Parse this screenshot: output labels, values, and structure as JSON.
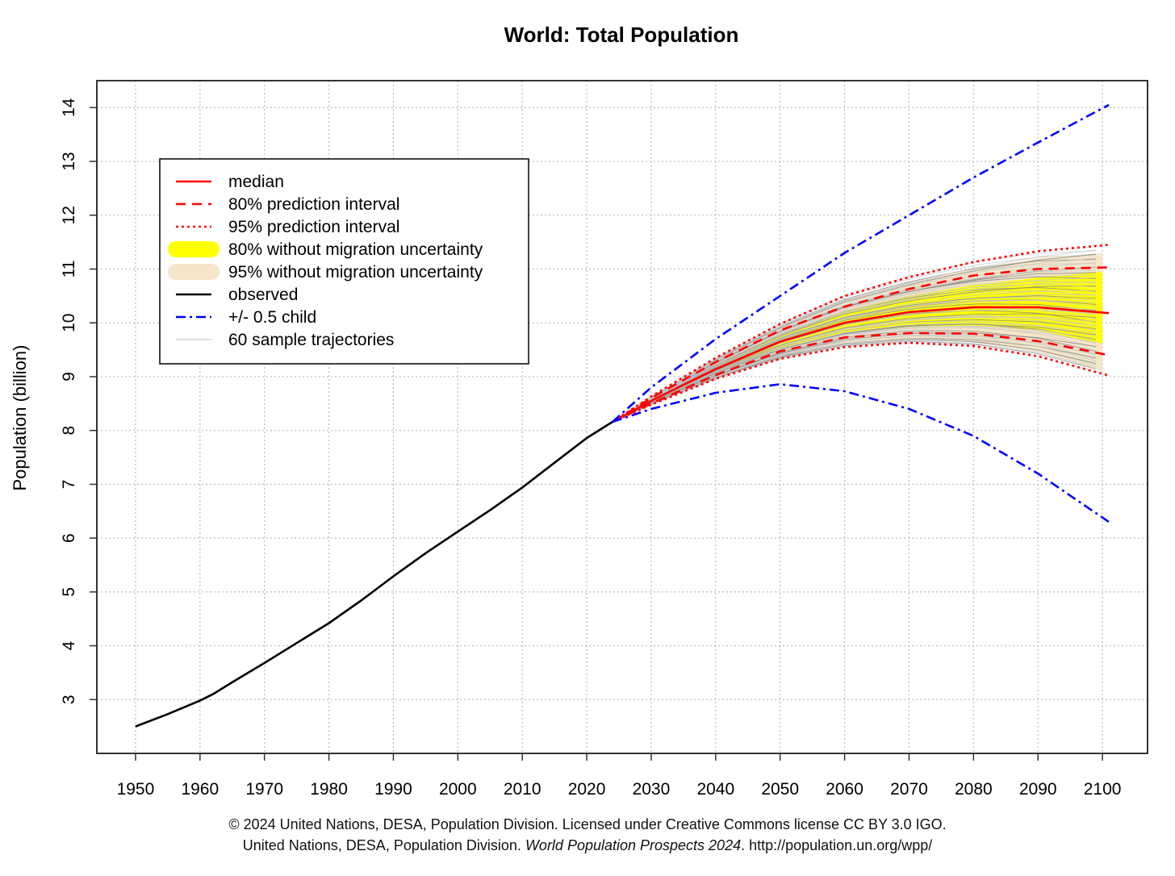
{
  "chart_data": {
    "type": "line",
    "title": "World: Total Population",
    "xlabel": "",
    "ylabel": "Population (billion)",
    "xlim": [
      1944,
      2107
    ],
    "ylim": [
      2.0,
      14.5
    ],
    "x_ticks": [
      "1950",
      "1960",
      "1970",
      "1980",
      "1990",
      "2000",
      "2010",
      "2020",
      "2030",
      "2040",
      "2050",
      "2060",
      "2070",
      "2080",
      "2090",
      "2100"
    ],
    "y_ticks": [
      "3",
      "4",
      "5",
      "6",
      "7",
      "8",
      "9",
      "10",
      "11",
      "12",
      "13",
      "14"
    ],
    "grid": true,
    "legend_position": "top-left",
    "legend": [
      {
        "label": "median",
        "style": "solid-red"
      },
      {
        "label": "80% prediction interval",
        "style": "dashed-red"
      },
      {
        "label": "95% prediction interval",
        "style": "dotted-red"
      },
      {
        "label": "80% without migration uncertainty",
        "style": "yellow-band"
      },
      {
        "label": "95% without migration uncertainty",
        "style": "beige-band"
      },
      {
        "label": "observed",
        "style": "solid-black"
      },
      {
        "label": "+/- 0.5 child",
        "style": "dashdot-blue"
      },
      {
        "label": "60 sample trajectories",
        "style": "thin-grey"
      }
    ],
    "colors": {
      "median": "#ff0000",
      "interval": "#ff0000",
      "band80": "#ffff00",
      "band95": "#f5e6c8",
      "observed": "#000000",
      "child": "#0000ff",
      "trajectories": "#bbbbbb",
      "grid": "#bbbbbb"
    },
    "series": [
      {
        "name": "observed",
        "x": [
          1950,
          1955,
          1960,
          1962,
          1965,
          1970,
          1975,
          1980,
          1985,
          1990,
          1995,
          2000,
          2005,
          2010,
          2015,
          2020,
          2024
        ],
        "values": [
          2.5,
          2.73,
          2.98,
          3.1,
          3.32,
          3.68,
          4.05,
          4.42,
          4.84,
          5.29,
          5.72,
          6.12,
          6.52,
          6.94,
          7.4,
          7.86,
          8.16
        ]
      },
      {
        "name": "median",
        "x": [
          2024,
          2030,
          2040,
          2050,
          2060,
          2070,
          2080,
          2090,
          2101
        ],
        "values": [
          8.16,
          8.55,
          9.14,
          9.65,
          10.0,
          10.2,
          10.29,
          10.29,
          10.18
        ]
      },
      {
        "name": "80% prediction interval upper",
        "x": [
          2024,
          2030,
          2040,
          2050,
          2060,
          2070,
          2080,
          2090,
          2101
        ],
        "values": [
          8.16,
          8.6,
          9.27,
          9.86,
          10.3,
          10.63,
          10.88,
          11.0,
          11.03
        ]
      },
      {
        "name": "80% prediction interval lower",
        "x": [
          2024,
          2030,
          2040,
          2050,
          2060,
          2070,
          2080,
          2090,
          2101
        ],
        "values": [
          8.16,
          8.5,
          9.03,
          9.47,
          9.73,
          9.81,
          9.8,
          9.66,
          9.4
        ]
      },
      {
        "name": "95% prediction interval upper",
        "x": [
          2024,
          2030,
          2040,
          2050,
          2060,
          2070,
          2080,
          2090,
          2101
        ],
        "values": [
          8.16,
          8.63,
          9.35,
          9.98,
          10.5,
          10.85,
          11.13,
          11.33,
          11.45
        ]
      },
      {
        "name": "95% prediction interval lower",
        "x": [
          2024,
          2030,
          2040,
          2050,
          2060,
          2070,
          2080,
          2090,
          2101
        ],
        "values": [
          8.16,
          8.48,
          8.96,
          9.33,
          9.55,
          9.63,
          9.57,
          9.38,
          9.02
        ]
      },
      {
        "name": "80% without migration uncertainty upper",
        "x": [
          2024,
          2030,
          2040,
          2050,
          2060,
          2070,
          2080,
          2090,
          2100
        ],
        "values": [
          8.16,
          8.58,
          9.23,
          9.8,
          10.22,
          10.5,
          10.7,
          10.84,
          10.95
        ]
      },
      {
        "name": "80% without migration uncertainty lower",
        "x": [
          2024,
          2030,
          2040,
          2050,
          2060,
          2070,
          2080,
          2090,
          2100
        ],
        "values": [
          8.16,
          8.52,
          9.07,
          9.52,
          9.82,
          9.92,
          9.95,
          9.85,
          9.62
        ]
      },
      {
        "name": "95% without migration uncertainty upper",
        "x": [
          2024,
          2030,
          2040,
          2050,
          2060,
          2070,
          2080,
          2090,
          2100
        ],
        "values": [
          8.16,
          8.62,
          9.32,
          9.93,
          10.42,
          10.75,
          11.0,
          11.2,
          11.3
        ]
      },
      {
        "name": "95% without migration uncertainty lower",
        "x": [
          2024,
          2030,
          2040,
          2050,
          2060,
          2070,
          2080,
          2090,
          2100
        ],
        "values": [
          8.16,
          8.49,
          8.99,
          9.38,
          9.6,
          9.69,
          9.64,
          9.46,
          9.1
        ]
      },
      {
        "name": "+0.5 child",
        "x": [
          2024,
          2030,
          2040,
          2050,
          2060,
          2070,
          2080,
          2090,
          2101
        ],
        "values": [
          8.16,
          8.8,
          9.7,
          10.5,
          11.3,
          12.0,
          12.7,
          13.35,
          14.05
        ]
      },
      {
        "name": "-0.5 child",
        "x": [
          2024,
          2030,
          2040,
          2050,
          2060,
          2070,
          2080,
          2090,
          2101
        ],
        "values": [
          8.16,
          8.4,
          8.7,
          8.86,
          8.73,
          8.4,
          7.9,
          7.2,
          6.3
        ]
      }
    ]
  },
  "credits": {
    "line1": "© 2024 United Nations, DESA, Population Division. Licensed under Creative Commons license CC BY 3.0 IGO.",
    "line2_prefix": "United Nations, DESA, Population Division.",
    "line2_italic": "World Population Prospects 2024",
    "line2_suffix": ". http://population.un.org/wpp/"
  }
}
